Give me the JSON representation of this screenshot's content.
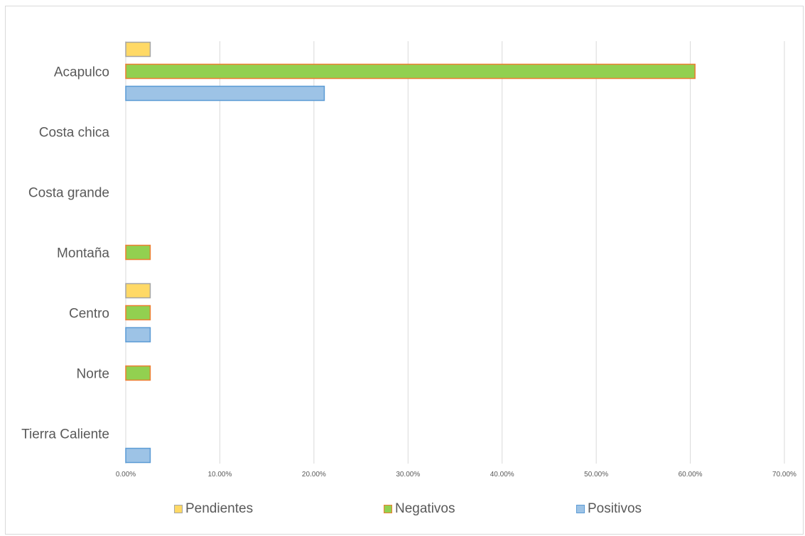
{
  "chart_data": {
    "type": "bar",
    "orientation": "horizontal",
    "categories": [
      "Acapulco",
      "Costa chica",
      "Costa grande",
      "Montaña",
      "Centro",
      "Norte",
      "Tierra Caliente"
    ],
    "series": [
      {
        "name": "Pendientes",
        "values": [
          2.6,
          0,
          0,
          0,
          2.6,
          0,
          0
        ],
        "color": "#ffd966",
        "border": "#a5a5a5"
      },
      {
        "name": "Negativos",
        "values": [
          60.5,
          0,
          0,
          2.6,
          2.6,
          2.6,
          0
        ],
        "color": "#92d050",
        "border": "#ed7d31"
      },
      {
        "name": "Positivos",
        "values": [
          21.1,
          0,
          0,
          0,
          2.6,
          0,
          2.6
        ],
        "color": "#9dc3e6",
        "border": "#5b9bd5"
      }
    ],
    "xlim": [
      0,
      70
    ],
    "x_ticks": [
      0,
      10,
      20,
      30,
      40,
      50,
      60,
      70
    ],
    "x_tick_labels": [
      "0.00%",
      "10.00%",
      "20.00%",
      "30.00%",
      "40.00%",
      "50.00%",
      "60.00%",
      "70.00%"
    ],
    "grid": true,
    "legend_position": "bottom",
    "title": "",
    "xlabel": "",
    "ylabel": ""
  }
}
